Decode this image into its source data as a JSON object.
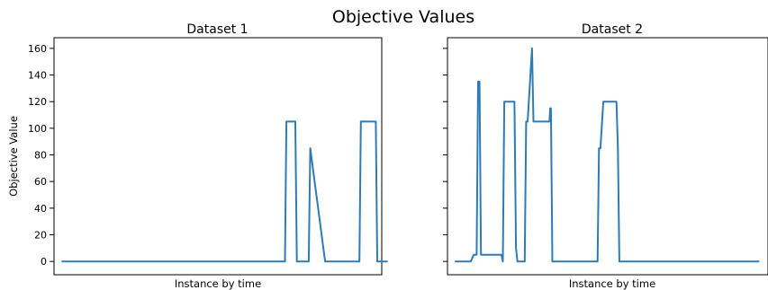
{
  "figure": {
    "title": "Objective Values"
  },
  "chart_data": [
    {
      "type": "line",
      "title": "Dataset 1",
      "xlabel": "Instance by time",
      "ylabel": "Objective Value",
      "ylim": [
        -10,
        168
      ],
      "xlim": [
        -5,
        215
      ],
      "yticks": [
        "0",
        "20",
        "40",
        "60",
        "80",
        "100",
        "120",
        "140",
        "160"
      ],
      "xticks_shown": false,
      "grid": false,
      "color": "#2f7bb6",
      "series": [
        {
          "x": [
            0,
            150,
            151,
            157,
            158,
            166,
            167,
            177,
            178,
            179,
            180,
            200,
            201,
            211,
            212,
            219
          ],
          "y": [
            0,
            0,
            105,
            105,
            0,
            0,
            85,
            0,
            0,
            0,
            0,
            0,
            105,
            105,
            0,
            0
          ]
        }
      ]
    },
    {
      "type": "line",
      "title": "Dataset 2",
      "xlabel": "Instance by time",
      "ylabel": "",
      "ylim": [
        -10,
        168
      ],
      "xlim": [
        -5,
        215
      ],
      "yticks": [
        "0",
        "20",
        "40",
        "60",
        "80",
        "100",
        "120",
        "140",
        "160"
      ],
      "xticks_shown": false,
      "grid": false,
      "color": "#2f7bb6",
      "series": [
        {
          "x": [
            0,
            11,
            13,
            15,
            16,
            17,
            18,
            20,
            31,
            32,
            33,
            34,
            40,
            41,
            42,
            43,
            44,
            48,
            49,
            50,
            53,
            54,
            55,
            56,
            58,
            65,
            65.5,
            66,
            67,
            68,
            98,
            99,
            100,
            102,
            103,
            111,
            112,
            113,
            117,
            118,
            209
          ],
          "y": [
            0,
            0,
            5,
            5,
            135,
            135,
            5,
            5,
            5,
            5,
            0,
            120,
            120,
            120,
            10,
            0,
            0,
            0,
            105,
            105,
            160,
            105,
            105,
            105,
            105,
            105,
            115,
            115,
            0,
            0,
            0,
            85,
            85,
            120,
            120,
            120,
            85,
            0,
            0,
            0,
            0
          ]
        }
      ]
    }
  ]
}
